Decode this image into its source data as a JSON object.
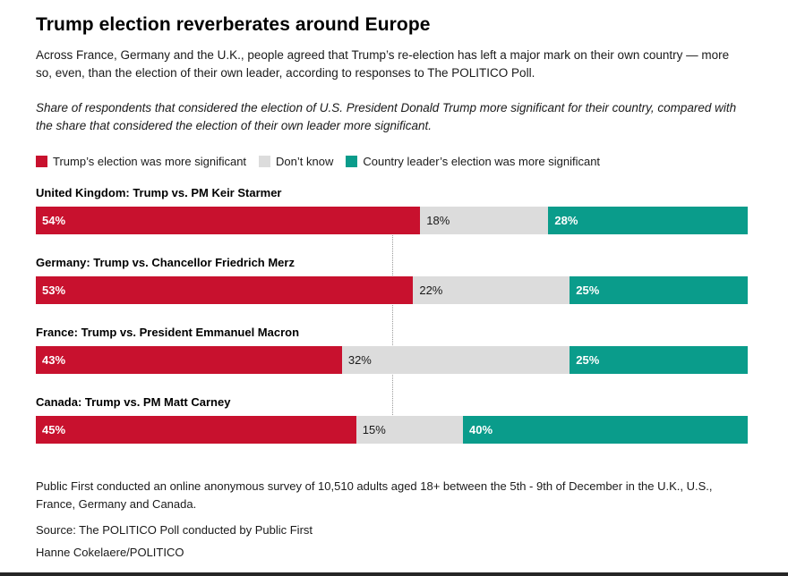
{
  "page": {
    "title": "Trump election reverberates around Europe",
    "description": "Across France, Germany and the U.K., people agreed that Trump’s re-election has left a major mark on their own country — more so, even, than the election of their own leader, according to responses to The POLITICO Poll.",
    "note": "Share of respondents that considered the election of U.S. President Donald Trump more significant for their country, compared with the share that considered the election of their own leader more significant."
  },
  "legend": [
    {
      "label": "Trump’s election was more significant",
      "color": "#c8112e"
    },
    {
      "label": "Don’t know",
      "color": "#dcdcdc"
    },
    {
      "label": "Country leader’s election was more significant",
      "color": "#0a9c8b"
    }
  ],
  "chart_data": {
    "type": "bar",
    "orientation": "horizontal-stacked",
    "categories": [
      "United Kingdom: Trump vs. PM Keir Starmer",
      "Germany: Trump vs. Chancellor Friedrich Merz",
      "France: Trump vs. President Emmanuel Macron",
      "Canada: Trump vs. PM Matt Carney"
    ],
    "series": [
      {
        "name": "Trump’s election was more significant",
        "color": "#c8112e",
        "value_label_color": "#ffffff",
        "values": [
          54,
          53,
          43,
          45
        ]
      },
      {
        "name": "Don’t know",
        "color": "#dcdcdc",
        "value_label_color": "#1a1a1a",
        "values": [
          18,
          22,
          32,
          15
        ]
      },
      {
        "name": "Country leader’s election was more significant",
        "color": "#0a9c8b",
        "value_label_color": "#ffffff",
        "values": [
          28,
          25,
          25,
          40
        ]
      }
    ],
    "value_suffix": "%",
    "xlim": [
      0,
      100
    ],
    "reference_line": 50,
    "grid": false,
    "legend_position": "top"
  },
  "footer": {
    "methodology": "Public First conducted an online anonymous survey of 10,510 adults aged 18+ between the 5th - 9th of December in the U.K., U.S., France, Germany and Canada.",
    "source": "Source: The POLITICO Poll conducted by Public First",
    "credit": "Hanne Cokelaere/POLITICO"
  }
}
